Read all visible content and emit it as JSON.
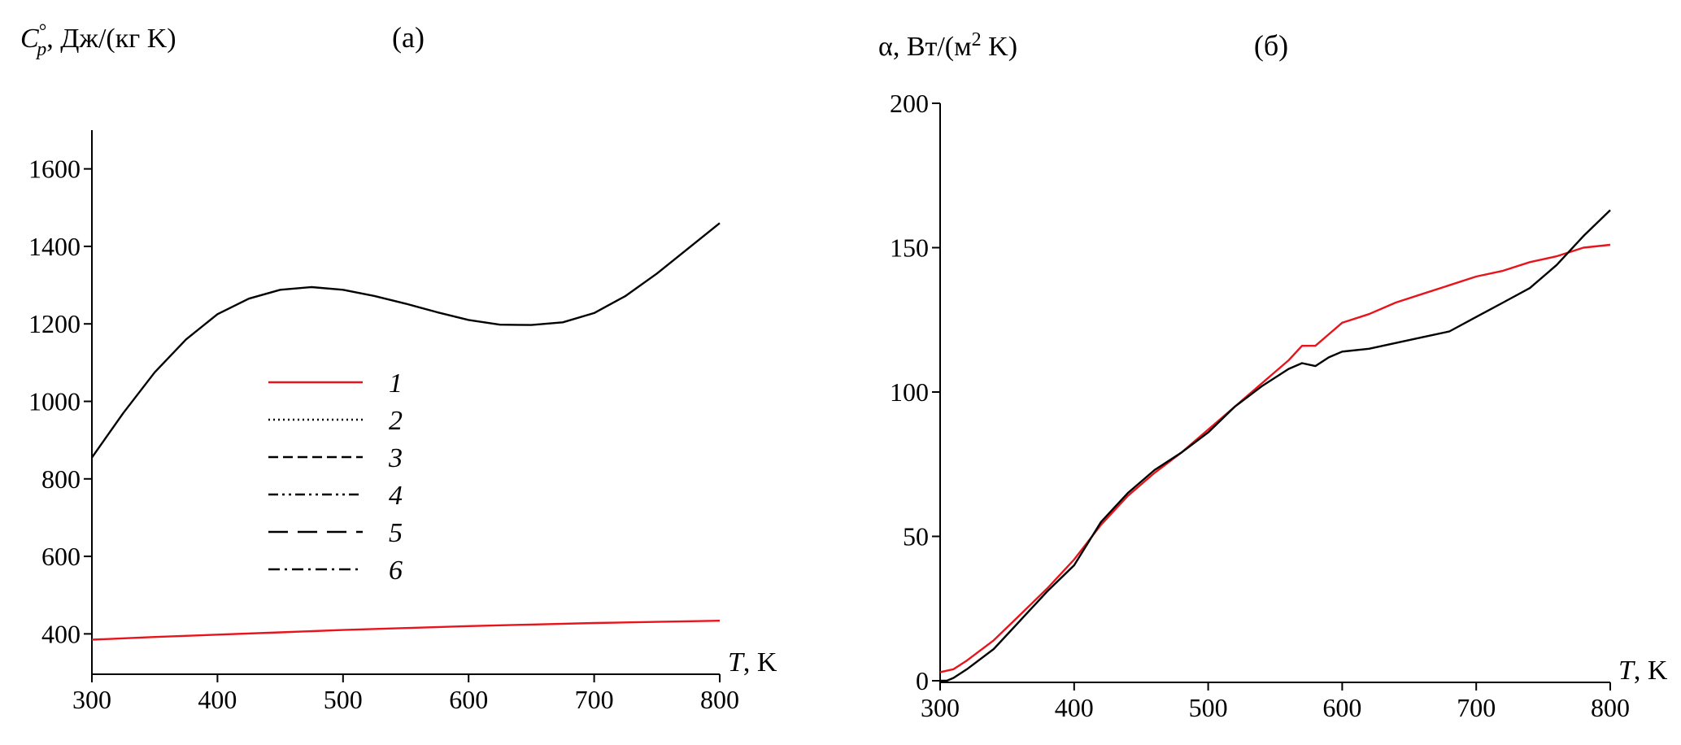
{
  "chart_data": [
    {
      "type": "line",
      "panel_label": "(a)",
      "ylabel": "C°p, Дж/(кг K)",
      "xlabel": "T, K",
      "xlim": [
        300,
        800
      ],
      "ylim": [
        300,
        1700
      ],
      "x_ticks": [
        300,
        400,
        500,
        600,
        700,
        800
      ],
      "y_ticks": [
        400,
        600,
        800,
        1000,
        1200,
        1400,
        1600
      ],
      "grid": false,
      "legend_position": "center-left",
      "legend": [
        {
          "label": "1",
          "style": "solid",
          "color": "#e8141b"
        },
        {
          "label": "2",
          "style": "dotted",
          "color": "#000000"
        },
        {
          "label": "3",
          "style": "dashed",
          "color": "#000000"
        },
        {
          "label": "4",
          "style": "dash-dot-dot",
          "color": "#000000"
        },
        {
          "label": "5",
          "style": "long-dash",
          "color": "#000000"
        },
        {
          "label": "6",
          "style": "dash-dot",
          "color": "#000000"
        }
      ],
      "series": [
        {
          "label": "1",
          "color": "#e8141b",
          "style": "solid",
          "x": [
            300,
            350,
            400,
            450,
            500,
            550,
            600,
            650,
            700,
            750,
            800
          ],
          "y": [
            385,
            392,
            398,
            404,
            410,
            415,
            420,
            424,
            428,
            431,
            434
          ]
        },
        {
          "label": "2-6",
          "color": "#000000",
          "style": "solid",
          "x": [
            300,
            325,
            350,
            375,
            400,
            425,
            450,
            475,
            500,
            525,
            550,
            575,
            600,
            625,
            650,
            675,
            700,
            725,
            750,
            775,
            800
          ],
          "y": [
            855,
            970,
            1075,
            1160,
            1225,
            1265,
            1288,
            1295,
            1288,
            1272,
            1252,
            1230,
            1210,
            1198,
            1197,
            1204,
            1228,
            1272,
            1330,
            1395,
            1460
          ]
        }
      ]
    },
    {
      "type": "line",
      "panel_label": "(б)",
      "ylabel": "α, Вт/(м² K)",
      "xlabel": "T, K",
      "xlim": [
        300,
        800
      ],
      "ylim": [
        0,
        200
      ],
      "x_ticks": [
        300,
        400,
        500,
        600,
        700,
        800
      ],
      "y_ticks": [
        0,
        50,
        100,
        150,
        200
      ],
      "grid": false,
      "series": [
        {
          "label": "1",
          "color": "#e8141b",
          "style": "solid",
          "x": [
            300,
            310,
            320,
            340,
            360,
            380,
            400,
            420,
            440,
            460,
            480,
            500,
            520,
            540,
            560,
            570,
            580,
            590,
            600,
            620,
            640,
            660,
            680,
            700,
            720,
            740,
            760,
            780,
            800
          ],
          "y": [
            3,
            4,
            7,
            14,
            23,
            32,
            42,
            54,
            64,
            72,
            79,
            87,
            95,
            103,
            111,
            116,
            116,
            120,
            124,
            127,
            131,
            134,
            137,
            140,
            142,
            145,
            147,
            150,
            151
          ]
        },
        {
          "label": "2-6",
          "color": "#000000",
          "style": "solid",
          "x": [
            300,
            305,
            310,
            320,
            340,
            360,
            380,
            400,
            420,
            440,
            460,
            480,
            500,
            520,
            540,
            560,
            570,
            580,
            590,
            600,
            620,
            640,
            660,
            680,
            700,
            720,
            740,
            760,
            780,
            800
          ],
          "y": [
            0,
            0,
            1,
            4,
            11,
            21,
            31,
            40,
            55,
            65,
            73,
            79,
            86,
            95,
            102,
            108,
            110,
            109,
            112,
            114,
            115,
            117,
            119,
            121,
            126,
            131,
            136,
            144,
            154,
            163
          ]
        }
      ]
    }
  ]
}
